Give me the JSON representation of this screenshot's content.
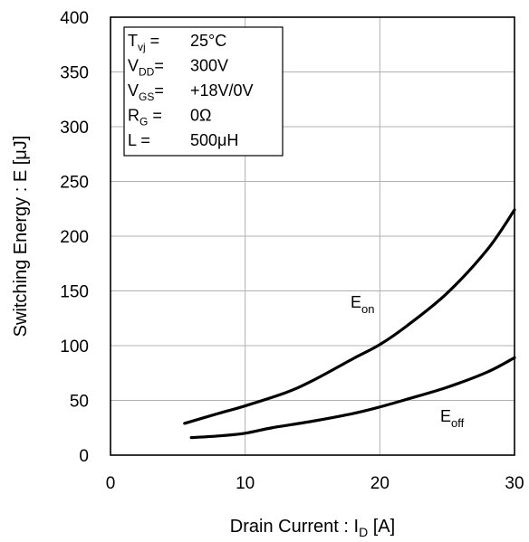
{
  "chart_data": {
    "type": "line",
    "xlabel": "Drain Current : I",
    "xlabel_sub": "D",
    "xlabel_unit": "[A]",
    "ylabel": "Switching Energy : E [μJ]",
    "xlim": [
      0,
      30
    ],
    "ylim": [
      0,
      400
    ],
    "x_ticks": [
      "0",
      "10",
      "20",
      "30"
    ],
    "y_ticks": [
      "0",
      "50",
      "100",
      "150",
      "200",
      "250",
      "300",
      "350",
      "400"
    ],
    "grid": true,
    "conditions": [
      {
        "label": "T",
        "sub": "vj",
        "suffix": " =",
        "value": "25°C"
      },
      {
        "label": "V",
        "sub": "DD",
        "suffix": "=",
        "value": "300V"
      },
      {
        "label": "V",
        "sub": "GS",
        "suffix": "=",
        "value": "+18V/0V"
      },
      {
        "label": "R",
        "sub": "G",
        "suffix": " =",
        "value": "0Ω"
      },
      {
        "label": "L",
        "sub": "",
        "suffix": " =",
        "value": "500μH"
      }
    ],
    "series": [
      {
        "name": "Eon",
        "label_main": "E",
        "label_sub": "on",
        "x": [
          5.5,
          8,
          10,
          13,
          15,
          18,
          20,
          22,
          25,
          28,
          30
        ],
        "y": [
          29,
          38,
          45,
          57,
          68,
          88,
          101,
          118,
          148,
          188,
          224
        ]
      },
      {
        "name": "Eoff",
        "label_main": "E",
        "label_sub": "off",
        "x": [
          6,
          8,
          10,
          12,
          15,
          18,
          20,
          22,
          25,
          28,
          30
        ],
        "y": [
          16,
          17.5,
          20,
          25,
          31,
          38,
          44,
          51,
          62,
          76,
          89
        ]
      }
    ]
  }
}
